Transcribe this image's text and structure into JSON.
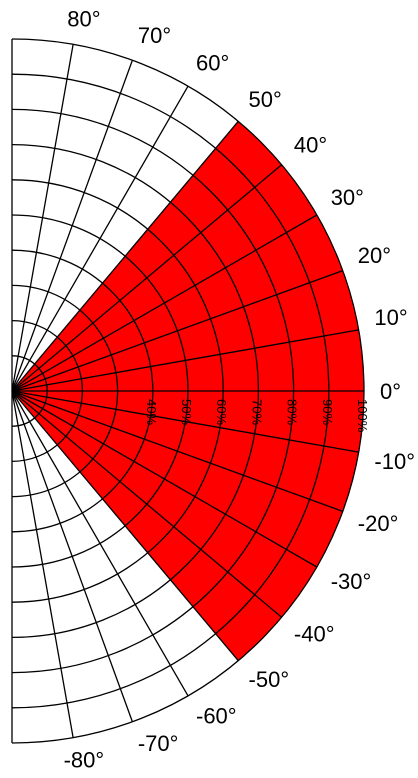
{
  "chart_data": {
    "type": "polar-sector",
    "angle_range": [
      -90,
      90
    ],
    "angle_ticks": [
      {
        "angle": 80,
        "label": "80°"
      },
      {
        "angle": 70,
        "label": "70°"
      },
      {
        "angle": 60,
        "label": "60°"
      },
      {
        "angle": 50,
        "label": "50°"
      },
      {
        "angle": 40,
        "label": "40°"
      },
      {
        "angle": 30,
        "label": "30°"
      },
      {
        "angle": 20,
        "label": "20°"
      },
      {
        "angle": 10,
        "label": "10°"
      },
      {
        "angle": 0,
        "label": "0°"
      },
      {
        "angle": -10,
        "label": "-10°"
      },
      {
        "angle": -20,
        "label": "-20°"
      },
      {
        "angle": -30,
        "label": "-30°"
      },
      {
        "angle": -40,
        "label": "-40°"
      },
      {
        "angle": -50,
        "label": "-50°"
      },
      {
        "angle": -60,
        "label": "-60°"
      },
      {
        "angle": -70,
        "label": "-70°"
      },
      {
        "angle": -80,
        "label": "-80°"
      }
    ],
    "radial_ticks": [
      {
        "value": 40,
        "label": "40%"
      },
      {
        "value": 50,
        "label": "50%"
      },
      {
        "value": 60,
        "label": "60%"
      },
      {
        "value": 70,
        "label": "70%"
      },
      {
        "value": 80,
        "label": "80%"
      },
      {
        "value": 90,
        "label": "90%"
      },
      {
        "value": 100,
        "label": "100%"
      }
    ],
    "radial_grid_values": [
      10,
      20,
      30,
      40,
      50,
      60,
      70,
      80,
      90,
      100
    ],
    "highlighted_sector": {
      "from_angle": -50,
      "to_angle": 50,
      "radius": 100,
      "color": "#ff0000"
    },
    "grid_color": "#000000",
    "background": "#ffffff"
  }
}
